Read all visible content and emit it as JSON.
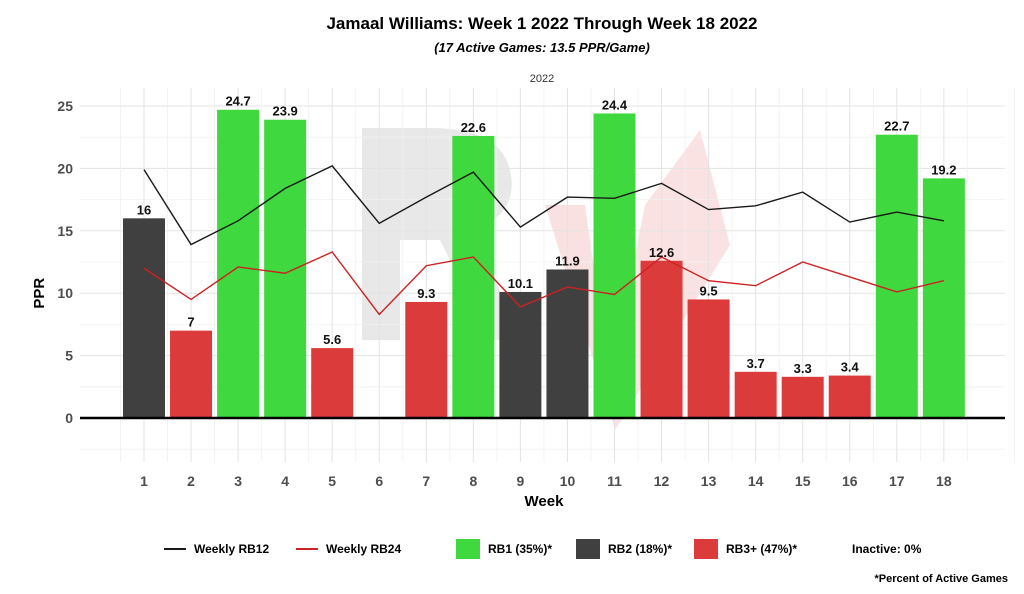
{
  "title": "Jamaal Williams: Week 1 2022 Through Week 18 2022",
  "subtitle": "(17 Active Games: 13.5 PPR/Game)",
  "facet_label": "2022",
  "footnote": "*Percent of Active Games",
  "legend": {
    "rb12": "Weekly RB12",
    "rb24": "Weekly RB24",
    "rb1": "RB1 (35%)*",
    "rb2": "RB2 (18%)*",
    "rb3": "RB3+ (47%)*",
    "inactive": "Inactive: 0%"
  },
  "colors": {
    "RB1": "#3fd83f",
    "RB2": "#404040",
    "RB3+": "#db3b3b",
    "rb12_line": "#1a1a1a",
    "rb24_line": "#cc2222"
  },
  "chart_data": {
    "type": "bar",
    "xlabel": "Week",
    "ylabel": "PPR",
    "ylim": [
      -4,
      25.5
    ],
    "yticks": [
      0,
      5,
      10,
      15,
      20,
      25
    ],
    "categories": [
      "1",
      "2",
      "3",
      "4",
      "5",
      "6",
      "7",
      "8",
      "9",
      "10",
      "11",
      "12",
      "13",
      "14",
      "15",
      "16",
      "17",
      "18"
    ],
    "bars": [
      {
        "week": "1",
        "value": 16,
        "label": "16",
        "tier": "RB2"
      },
      {
        "week": "2",
        "value": 7,
        "label": "7",
        "tier": "RB3+"
      },
      {
        "week": "3",
        "value": 24.7,
        "label": "24.7",
        "tier": "RB1"
      },
      {
        "week": "4",
        "value": 23.9,
        "label": "23.9",
        "tier": "RB1"
      },
      {
        "week": "5",
        "value": 5.6,
        "label": "5.6",
        "tier": "RB3+"
      },
      {
        "week": "7",
        "value": 9.3,
        "label": "9.3",
        "tier": "RB3+"
      },
      {
        "week": "8",
        "value": 22.6,
        "label": "22.6",
        "tier": "RB1"
      },
      {
        "week": "9",
        "value": 10.1,
        "label": "10.1",
        "tier": "RB2"
      },
      {
        "week": "10",
        "value": 11.9,
        "label": "11.9",
        "tier": "RB2"
      },
      {
        "week": "11",
        "value": 24.4,
        "label": "24.4",
        "tier": "RB1"
      },
      {
        "week": "12",
        "value": 12.6,
        "label": "12.6",
        "tier": "RB3+"
      },
      {
        "week": "13",
        "value": 9.5,
        "label": "9.5",
        "tier": "RB3+"
      },
      {
        "week": "14",
        "value": 3.7,
        "label": "3.7",
        "tier": "RB3+"
      },
      {
        "week": "15",
        "value": 3.3,
        "label": "3.3",
        "tier": "RB3+"
      },
      {
        "week": "16",
        "value": 3.4,
        "label": "3.4",
        "tier": "RB3+"
      },
      {
        "week": "17",
        "value": 22.7,
        "label": "22.7",
        "tier": "RB1"
      },
      {
        "week": "18",
        "value": 19.2,
        "label": "19.2",
        "tier": "RB1"
      }
    ],
    "series": [
      {
        "name": "Weekly RB12",
        "values": [
          19.9,
          13.9,
          15.8,
          18.4,
          20.2,
          15.6,
          17.7,
          19.7,
          15.3,
          17.7,
          17.6,
          18.8,
          16.7,
          17.0,
          18.1,
          15.7,
          16.5,
          15.8
        ]
      },
      {
        "name": "Weekly RB24",
        "values": [
          12.0,
          9.5,
          12.1,
          11.6,
          13.3,
          8.3,
          12.2,
          12.9,
          8.9,
          10.5,
          9.9,
          12.9,
          11.0,
          10.6,
          12.5,
          11.3,
          10.1,
          11.0
        ]
      }
    ]
  }
}
